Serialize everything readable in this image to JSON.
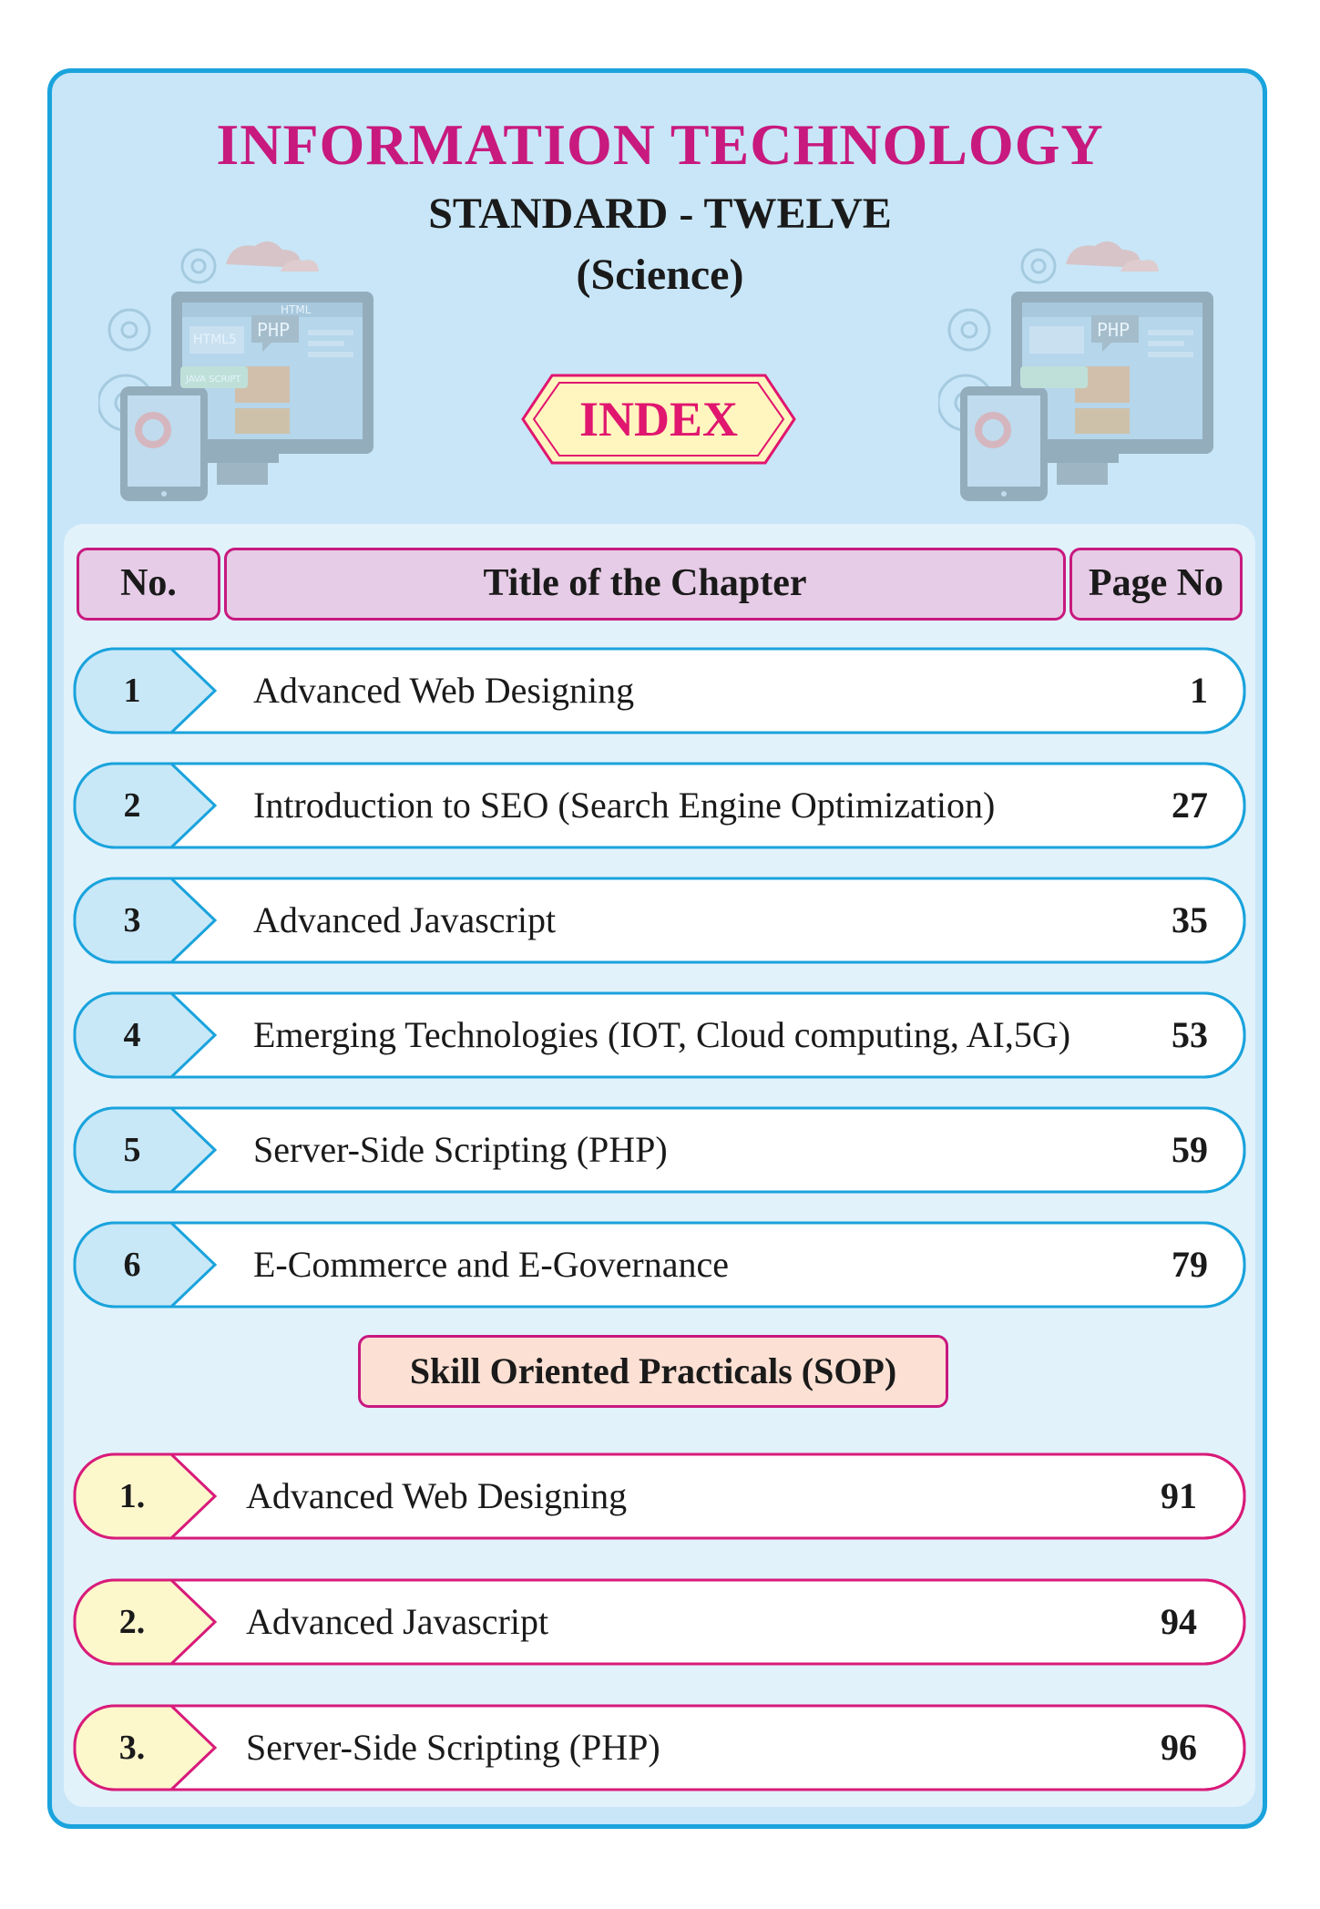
{
  "header": {
    "title": "INFORMATION TECHNOLOGY",
    "standard": "STANDARD - TWELVE",
    "stream": "(Science)",
    "index_label": "INDEX"
  },
  "table_header": {
    "no": "No.",
    "title": "Title of the Chapter",
    "page": "Page No"
  },
  "chapters": [
    {
      "no": "1",
      "title": "Advanced Web Designing",
      "page": "1"
    },
    {
      "no": "2",
      "title": "Introduction to SEO (Search Engine Optimization)",
      "page": "27"
    },
    {
      "no": "3",
      "title": "Advanced Javascript",
      "page": "35"
    },
    {
      "no": "4",
      "title": "Emerging Technologies (IOT, Cloud computing, AI,5G)",
      "page": "53"
    },
    {
      "no": "5",
      "title": "Server-Side Scripting (PHP)",
      "page": "59"
    },
    {
      "no": "6",
      "title": "E-Commerce and E-Governance",
      "page": "79"
    }
  ],
  "sop": {
    "heading": "Skill Oriented Practicals  (SOP)",
    "items": [
      {
        "no": "1.",
        "title": "Advanced Web Designing",
        "page": "91"
      },
      {
        "no": "2.",
        "title": "Advanced Javascript",
        "page": "94"
      },
      {
        "no": "3.",
        "title": "Server-Side Scripting (PHP)",
        "page": "96"
      }
    ]
  },
  "illustration": {
    "php_label": "PHP",
    "html_label": "HTML",
    "js_label": "JAVA SCRIPT"
  },
  "colors": {
    "frame_border": "#1aa3dc",
    "frame_bg": "#c8e6f7",
    "title": "#c8197f",
    "index_text": "#e0166f",
    "chapter_tab": "#c8e8f8",
    "sop_tab": "#fdf7cc",
    "sop_border": "#d81b7a"
  }
}
